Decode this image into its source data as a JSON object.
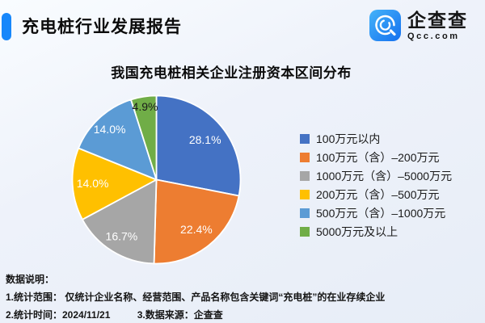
{
  "header": {
    "title": "充电桩行业发展报告",
    "accent_color": "#1787fb"
  },
  "logo": {
    "name": "企查查",
    "domain": "Qcc.com",
    "icon": "qcc-q-mark-icon",
    "icon_colors": {
      "top": "#45b3f9",
      "bottom": "#1470ef"
    }
  },
  "chart_data": {
    "type": "pie",
    "title": "我国充电桩相关企业注册资本区间分布",
    "legend_position": "right",
    "direction": "clockwise",
    "start_angle_deg": 0,
    "value_format": "percent_1dp",
    "slices": [
      {
        "label": "100万元以内",
        "value": 28.1,
        "color": "#4472C4",
        "label_color": "#ffffff",
        "label_radius": 0.75
      },
      {
        "label": "100万元（含）–200万元",
        "value": 22.4,
        "color": "#ED7D31",
        "label_color": "#ffffff",
        "label_radius": 0.76
      },
      {
        "label": "1000万元（含）–5000万元",
        "value": 16.7,
        "color": "#A6A6A6",
        "label_color": "#ffffff",
        "label_radius": 0.79
      },
      {
        "label": "200万元（含）–500万元",
        "value": 14.0,
        "color": "#FFC000",
        "label_color": "#ffffff",
        "label_radius": 0.76
      },
      {
        "label": "500万元（含）–1000万元",
        "value": 14.0,
        "color": "#5B9BD5",
        "label_color": "#ffffff",
        "label_radius": 0.82
      },
      {
        "label": "5000万元及以上",
        "value": 4.9,
        "color": "#70AD47",
        "label_color": "#1a1a1a",
        "label_radius": 0.88
      }
    ]
  },
  "notes": {
    "heading": "数据说明：",
    "line1": "1.统计范围： 仅统计企业名称、经营范围、产品名称包含关键词“充电桩”的在业存续企业",
    "line2_part1": "2.统计时间：2024/11/21",
    "line2_part2": "3.数据来源：企查查"
  }
}
